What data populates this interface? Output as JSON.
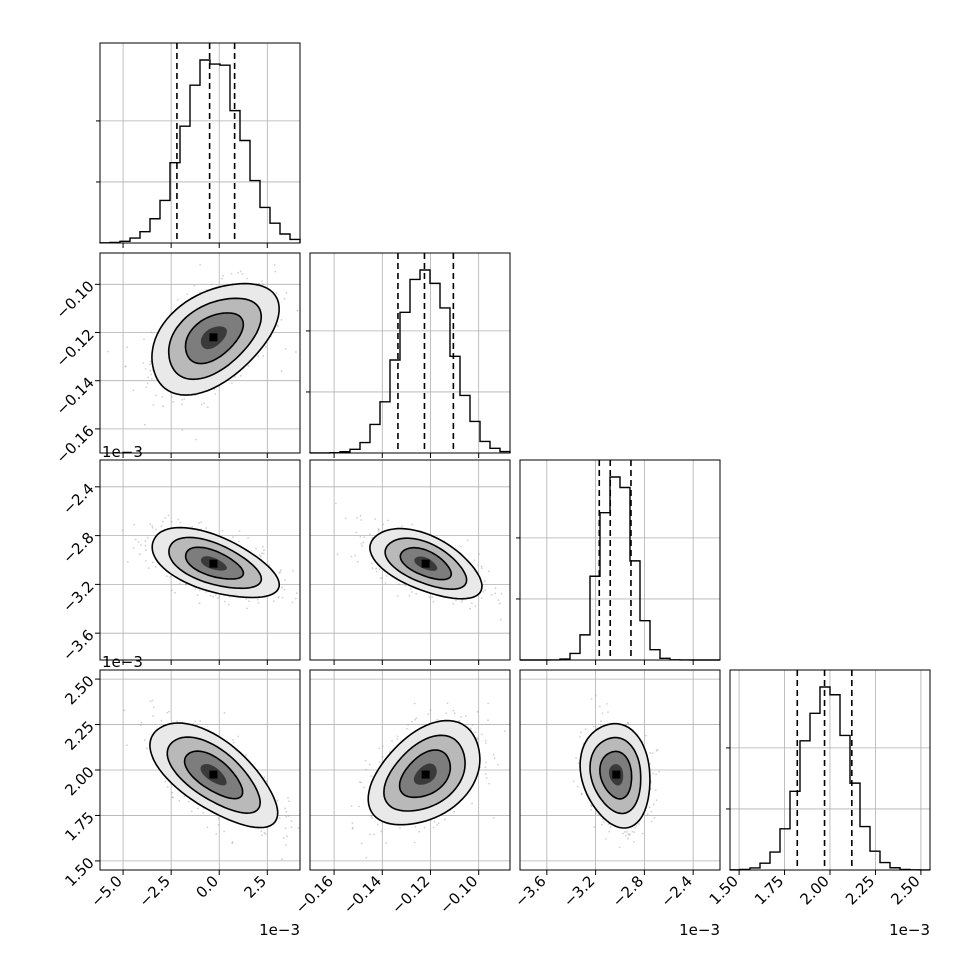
{
  "chart_data": {
    "type": "corner",
    "parameters": [
      {
        "range": [
          -6.2,
          4.2
        ],
        "ticks": [
          -5.0,
          -2.5,
          0.0,
          2.5
        ],
        "tick_labels": [
          "−5.0",
          "−2.5",
          "0.0",
          "2.5"
        ],
        "offset_text": "1e−3",
        "mean": -0.3,
        "sd": 1.5,
        "quantiles": [
          -2.2,
          -0.5,
          0.8
        ]
      },
      {
        "range": [
          -0.17,
          -0.087
        ],
        "ticks": [
          -0.16,
          -0.14,
          -0.12,
          -0.1
        ],
        "tick_labels": [
          "−0.16",
          "−0.14",
          "−0.12",
          "−0.10"
        ],
        "offset_text": "",
        "mean": -0.122,
        "sd": 0.0105,
        "quantiles": [
          -0.1335,
          -0.1225,
          -0.1105
        ]
      },
      {
        "range": [
          -3.82,
          -2.18
        ],
        "ticks": [
          -3.6,
          -3.2,
          -2.8,
          -2.4
        ],
        "tick_labels": [
          "−3.6",
          "−3.2",
          "−2.8",
          "−2.4"
        ],
        "offset_text": "1e−3",
        "mean": -3.03,
        "sd": 0.13,
        "quantiles": [
          -3.17,
          -3.08,
          -2.91
        ]
      },
      {
        "range": [
          1.45,
          2.55
        ],
        "ticks": [
          1.5,
          1.75,
          2.0,
          2.25,
          2.5
        ],
        "tick_labels": [
          "1.50",
          "1.75",
          "2.00",
          "2.25",
          "2.50"
        ],
        "offset_text": "1e−3",
        "mean": 1.975,
        "sd": 0.13,
        "quantiles": [
          1.82,
          1.97,
          2.12
        ]
      }
    ],
    "correlations": {
      "1-0": 0.45,
      "2-0": -0.55,
      "2-1": -0.55,
      "3-0": -0.65,
      "3-1": 0.4,
      "3-2": -0.15
    },
    "histogram_bins": 20,
    "contour_levels": 3,
    "grid": true,
    "colors": {
      "line": "#000000",
      "points": "#9a9a9a",
      "grid": "#b0b0b0"
    }
  }
}
